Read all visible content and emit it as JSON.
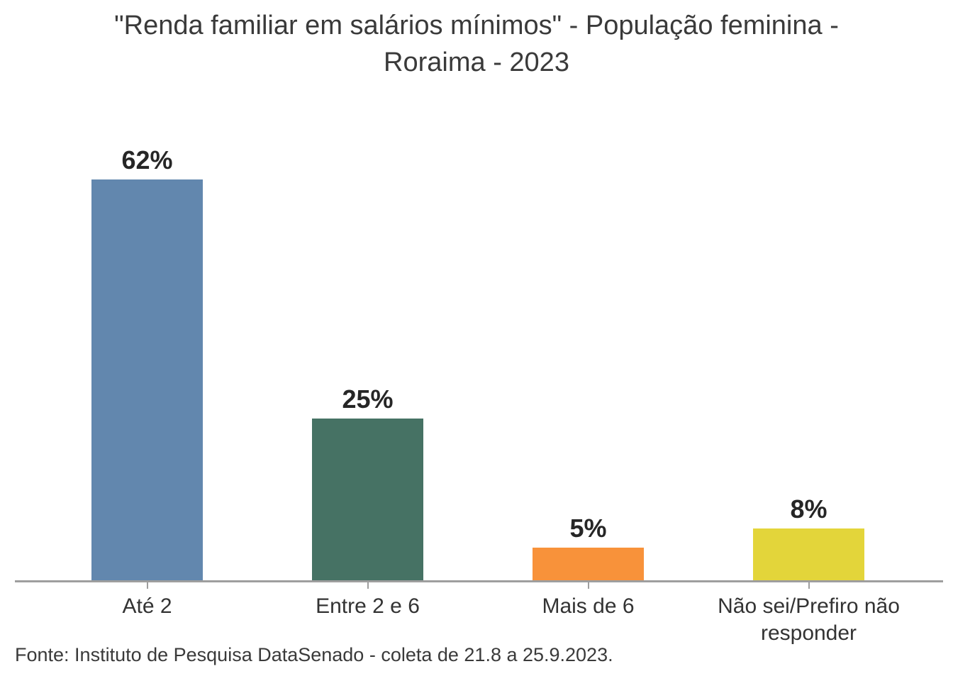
{
  "title": {
    "line1": "\"Renda familiar em salários mínimos\" - População feminina -",
    "line2": "Roraima - 2023"
  },
  "footer": "Fonte: Instituto de Pesquisa DataSenado - coleta de 21.8 a 25.9.2023.",
  "chart_data": {
    "type": "bar",
    "title": "\"Renda familiar em salários mínimos\" - População feminina - Roraima - 2023",
    "categories": [
      "Até 2",
      "Entre 2 e 6",
      "Mais de 6",
      "Não sei/Prefiro não responder"
    ],
    "values": [
      62,
      25,
      5,
      8
    ],
    "value_labels": [
      "62%",
      "25%",
      "5%",
      "8%"
    ],
    "bar_colors": [
      "#6287AE",
      "#467264",
      "#F8923A",
      "#E3D53A"
    ],
    "xlabel": "",
    "ylabel": "",
    "ylim": [
      0,
      62
    ],
    "grid": false,
    "legend": null,
    "axis_color": "#9E9E9E",
    "value_label_color": "#262626",
    "category_label_color": "#333333",
    "title_color": "#3A3A3A",
    "source": "Fonte: Instituto de Pesquisa DataSenado - coleta de 21.8 a 25.9.2023."
  }
}
